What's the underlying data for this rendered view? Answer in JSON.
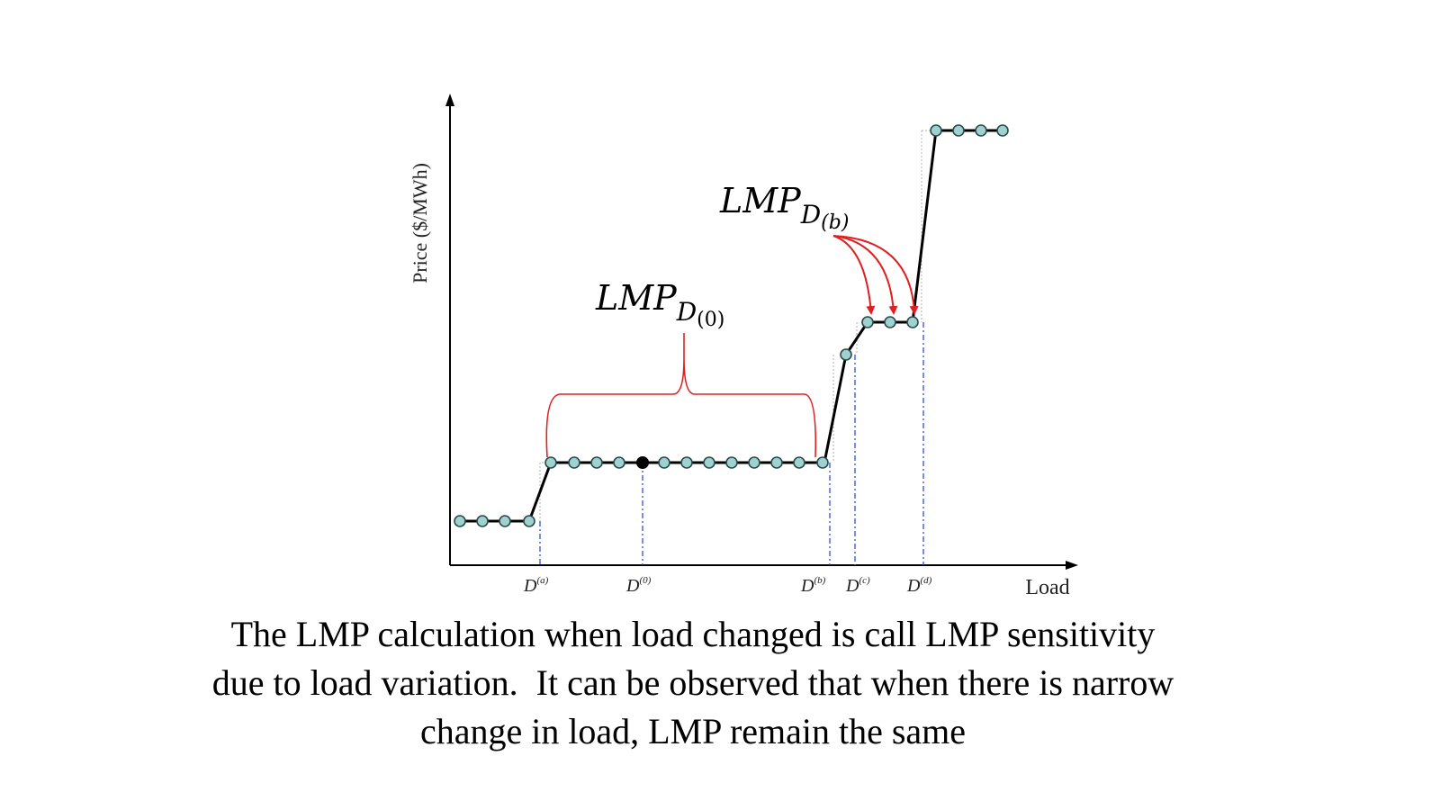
{
  "axes": {
    "y_label": "Price ($/MWh)",
    "x_label": "Load"
  },
  "ticks": [
    {
      "base": "D",
      "sup": "(a)"
    },
    {
      "base": "D",
      "sup": "(0)"
    },
    {
      "base": "D",
      "sup": "(b)"
    },
    {
      "base": "D",
      "sup": "(c)"
    },
    {
      "base": "D",
      "sup": "(d)"
    }
  ],
  "annotations": {
    "lmp0": {
      "main": "LMP",
      "sub": "D",
      "subsub": "(0)"
    },
    "lmpb": {
      "main": "LMP",
      "sub": "D",
      "subsub": "(b)"
    }
  },
  "caption": [
    "The LMP calculation when load changed is call LMP sensitivity",
    "due to load variation.  It can be observed that when there is narrow",
    "change in load, LMP remain the same"
  ],
  "colors": {
    "curve": "#000000",
    "marker_fill": "#9fd2cf",
    "marker_edge": "#2a4a4a",
    "operating_point": "#000000",
    "annotation": "#e02020",
    "guide": "#3050e0"
  }
}
